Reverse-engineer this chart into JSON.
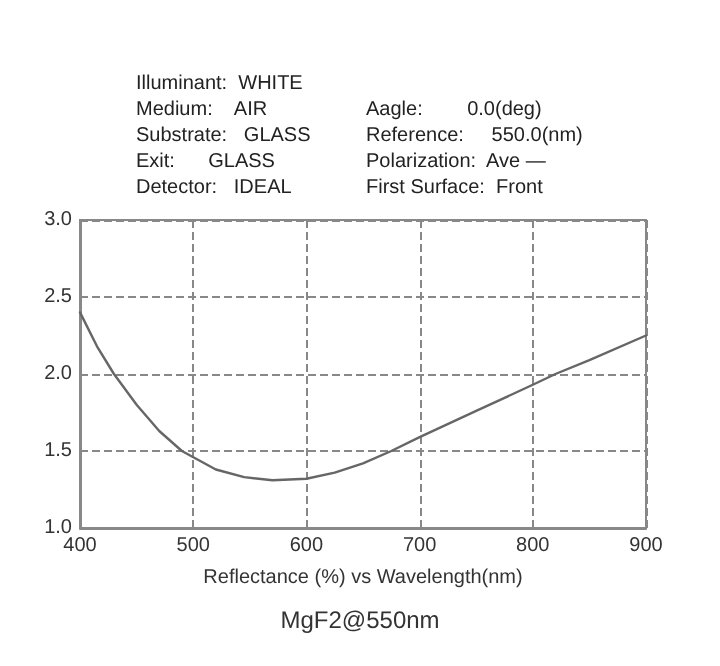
{
  "chart_data": {
    "type": "line",
    "title": "MgF2@550nm",
    "xlabel": "Reflectance (%) vs Wavelength(nm)",
    "annotations": [
      "Illuminant:  WHITE",
      "Medium:    AIR",
      "Substrate:   GLASS",
      "Exit:      GLASS",
      "Detector:   IDEAL",
      "Aagle:        0.0(deg)",
      "Reference:     550.0(nm)",
      "Polarization:  Ave —",
      "First Surface:  Front"
    ],
    "x": [
      400,
      415,
      430,
      450,
      470,
      490,
      520,
      545,
      570,
      600,
      625,
      650,
      675,
      700,
      750,
      800,
      820,
      850,
      900
    ],
    "series": [
      {
        "color": "#666666",
        "values": [
          2.4,
          2.18,
          2.0,
          1.8,
          1.63,
          1.5,
          1.38,
          1.33,
          1.31,
          1.32,
          1.36,
          1.42,
          1.5,
          1.59,
          1.76,
          1.93,
          2.0,
          2.09,
          2.25
        ]
      }
    ],
    "xlim": [
      400,
      900
    ],
    "xticks": [
      400,
      500,
      600,
      700,
      800,
      900
    ],
    "ylim": [
      1.0,
      3.0
    ],
    "yticks": [
      {
        "value": 1.0,
        "label": "1.0"
      },
      {
        "value": 1.5,
        "label": "1.5"
      },
      {
        "value": 2.0,
        "label": "2.0"
      },
      {
        "value": 2.5,
        "label": "2.5"
      },
      {
        "value": 3.0,
        "label": "3.0"
      }
    ],
    "grid": true,
    "marker": "none",
    "line_style": "solid"
  }
}
